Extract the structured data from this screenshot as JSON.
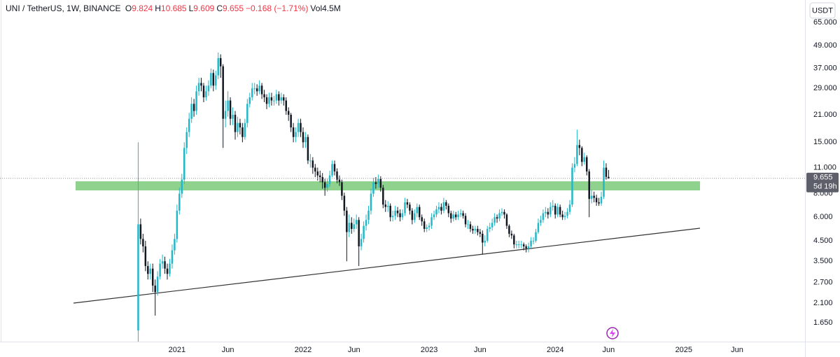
{
  "header": {
    "symbol": "UNI / TetherUS, 1W, BINANCE",
    "fields": [
      {
        "key": "O",
        "value": "9.824"
      },
      {
        "key": "H",
        "value": "10.685"
      },
      {
        "key": "L",
        "value": "9.609"
      },
      {
        "key": "C",
        "value": "9.655"
      }
    ],
    "change": "−0.168 (−1.71%)",
    "volume_key": "Vol",
    "volume": "4.5M"
  },
  "chart_data": {
    "type": "candlestick",
    "currency": "USDT",
    "log_scale": true,
    "grid": false,
    "up_color": "#22b8c8",
    "down_color": "#131722",
    "last_price": 9.655,
    "countdown": "5d 19h",
    "xlim": [
      -57,
      275
    ],
    "xticks": [
      {
        "value": 16,
        "label": "2021"
      },
      {
        "value": 37,
        "label": "Jun"
      },
      {
        "value": 68,
        "label": "2022"
      },
      {
        "value": 89,
        "label": "Jun"
      },
      {
        "value": 120,
        "label": "2023"
      },
      {
        "value": 141,
        "label": "Jun"
      },
      {
        "value": 172,
        "label": "2024"
      },
      {
        "value": 194,
        "label": "Jun"
      },
      {
        "value": 225,
        "label": "2025"
      },
      {
        "value": 247,
        "label": "Jun"
      }
    ],
    "ylim": [
      1.31,
      85.5
    ],
    "yticks": [
      {
        "value": 65,
        "label": "65.000"
      },
      {
        "value": 49,
        "label": "49.000"
      },
      {
        "value": 37,
        "label": "37.000"
      },
      {
        "value": 29,
        "label": "29.000"
      },
      {
        "value": 21,
        "label": "21.000"
      },
      {
        "value": 15,
        "label": "15.000"
      },
      {
        "value": 11,
        "label": "11.000"
      },
      {
        "value": 8,
        "label": "8.000"
      },
      {
        "value": 6,
        "label": "6.000"
      },
      {
        "value": 4.5,
        "label": "4.500"
      },
      {
        "value": 3.5,
        "label": "3.500"
      },
      {
        "value": 2.7,
        "label": "2.700"
      },
      {
        "value": 2.1,
        "label": "2.100"
      },
      {
        "value": 1.65,
        "label": "1.650"
      }
    ],
    "open": [
      1.5,
      5.5,
      4.6,
      4.2,
      3.3,
      3.0,
      3.2,
      2.6,
      2.4,
      2.9,
      3.4,
      3.5,
      3.2,
      3.0,
      3.4,
      4.0,
      4.6,
      6.5,
      8.0,
      9.5,
      14,
      17,
      20,
      24,
      22,
      28,
      31,
      30,
      26,
      28,
      30,
      35,
      30,
      34,
      42,
      38,
      20,
      22,
      25,
      20,
      21,
      17,
      19,
      18,
      16,
      19,
      24,
      26,
      29,
      29,
      28,
      30,
      27,
      26,
      24,
      26,
      25,
      25,
      27,
      25,
      26,
      25,
      22,
      21,
      18,
      16,
      17,
      19,
      17,
      15,
      16,
      12,
      12,
      11,
      10.5,
      10,
      9.8,
      9.2,
      8.6,
      9,
      10,
      11.5,
      10.5,
      9.5,
      9.2,
      7.8,
      6.5,
      5.0,
      5.6,
      5.2,
      5.5,
      5.8,
      4.2,
      4.6,
      5.4,
      5.8,
      6.5,
      8.0,
      9.2,
      9.0,
      9.6,
      8.6,
      7.0,
      6.8,
      6.9,
      6.0,
      6.1,
      6.5,
      6.3,
      6.0,
      6.3,
      7.2,
      7.0,
      6.5,
      5.8,
      6.3,
      6.8,
      6.0,
      5.7,
      5.2,
      5.3,
      5.4,
      6.0,
      6.2,
      6.6,
      6.8,
      6.5,
      7.2,
      6.9,
      6.3,
      5.9,
      6.2,
      6.0,
      6.2,
      6.3,
      6.1,
      5.5,
      5.5,
      5.2,
      5.1,
      5.2,
      5.0,
      4.9,
      4.4,
      4.5,
      5.2,
      5.3,
      5.6,
      6.0,
      5.9,
      6.3,
      6.4,
      6.2,
      5.4,
      4.9,
      4.8,
      4.3,
      4.3,
      4.3,
      4.3,
      4.2,
      4.1,
      4.2,
      4.5,
      4.5,
      5.0,
      5.6,
      5.8,
      6.3,
      6.4,
      6.2,
      6.8,
      6.9,
      6.2,
      6.8,
      6.2,
      6.0,
      6.1,
      6.4,
      7.0,
      11.0,
      11.5,
      14.5,
      14.0,
      11.8,
      12.5,
      10.5,
      7.5,
      7.8,
      7.6,
      7.2,
      7.1,
      7.7,
      11.0,
      9.824
    ],
    "high": [
      15,
      5.9,
      4.9,
      4.5,
      3.5,
      3.4,
      3.4,
      2.8,
      3.1,
      3.6,
      3.8,
      3.7,
      3.4,
      3.6,
      4.3,
      4.9,
      7.0,
      8.6,
      10.2,
      15,
      18,
      21.5,
      26,
      25.5,
      30,
      33,
      33,
      31,
      30,
      32,
      37,
      36.5,
      36,
      45,
      44,
      39,
      25,
      28,
      26,
      23,
      22,
      20.5,
      20,
      19,
      20,
      25.5,
      27.5,
      31,
      31,
      30.5,
      32,
      31,
      28.5,
      27,
      27.5,
      27.5,
      26.5,
      28.5,
      28,
      27.5,
      27,
      26,
      23,
      21.5,
      19,
      18,
      20,
      20,
      18,
      17,
      16.5,
      13,
      12.5,
      11.5,
      11,
      10.6,
      10.3,
      9.6,
      9.6,
      10.6,
      12,
      12,
      10.9,
      10,
      9.5,
      8.1,
      6.8,
      6.2,
      6.0,
      5.9,
      6.2,
      6.0,
      4.9,
      5.7,
      6.2,
      6.9,
      8.5,
      9.7,
      9.8,
      10.1,
      9.9,
      8.9,
      7.4,
      7.3,
      7.1,
      6.5,
      6.9,
      6.8,
      6.6,
      6.6,
      7.6,
      7.5,
      7.2,
      6.7,
      6.6,
      7.1,
      7.0,
      6.2,
      5.9,
      5.5,
      5.6,
      6.3,
      6.5,
      6.9,
      7.2,
      7.1,
      7.6,
      7.4,
      7.1,
      6.5,
      6.5,
      6.4,
      6.5,
      6.6,
      6.5,
      6.3,
      5.8,
      5.7,
      5.4,
      5.4,
      5.4,
      5.2,
      5.1,
      4.8,
      5.4,
      5.6,
      5.9,
      6.3,
      6.2,
      6.6,
      6.7,
      6.6,
      6.3,
      5.5,
      5.1,
      4.9,
      4.5,
      4.5,
      4.5,
      4.4,
      4.3,
      4.4,
      4.7,
      4.7,
      5.2,
      5.9,
      6.1,
      6.6,
      6.8,
      6.7,
      7.2,
      7.4,
      7.1,
      7.1,
      7.0,
      6.5,
      6.4,
      6.7,
      7.4,
      11.6,
      12.5,
      17.5,
      15.5,
      14.3,
      13.2,
      12.8,
      10.8,
      8.4,
      8.2,
      7.9,
      7.6,
      8.2,
      12.0,
      11.6,
      10.685
    ],
    "low": [
      1.31,
      4.3,
      3.9,
      3.1,
      2.8,
      2.8,
      2.4,
      1.8,
      2.3,
      2.8,
      3.2,
      3.0,
      2.8,
      2.9,
      3.2,
      3.8,
      4.4,
      6.2,
      7.6,
      9.0,
      13,
      16,
      19,
      20.5,
      21,
      26.5,
      28,
      24.5,
      25,
      26.5,
      29,
      28,
      28.5,
      32.5,
      33,
      14,
      18,
      20.5,
      18.5,
      18.5,
      15.5,
      16,
      16.5,
      15,
      15.5,
      18,
      23,
      25,
      27,
      26.5,
      27,
      25.5,
      24.5,
      22.5,
      23,
      23.5,
      23.5,
      24,
      23.5,
      24,
      23.5,
      21,
      19.5,
      17,
      15,
      15,
      16,
      16,
      14,
      14,
      11.5,
      11,
      10.2,
      9.8,
      9.4,
      9.2,
      8.5,
      7.8,
      8.2,
      8.7,
      9.8,
      10,
      9.1,
      8.8,
      7.4,
      6.1,
      3.5,
      4.7,
      4.9,
      5.0,
      5.2,
      3.3,
      4.0,
      4.4,
      5.1,
      5.5,
      6.2,
      7.7,
      8.5,
      8.6,
      8.2,
      6.7,
      6.4,
      6.4,
      5.7,
      5.7,
      5.8,
      6.0,
      5.7,
      5.8,
      6.1,
      6.7,
      6.2,
      5.5,
      5.6,
      6.0,
      5.8,
      5.4,
      5.0,
      5.0,
      5.1,
      5.2,
      5.8,
      6.0,
      6.3,
      6.2,
      6.3,
      6.6,
      6.0,
      5.6,
      5.7,
      5.8,
      5.8,
      6.0,
      5.9,
      5.3,
      5.2,
      5.0,
      4.9,
      4.9,
      4.8,
      4.7,
      3.8,
      4.2,
      4.4,
      5.0,
      5.1,
      5.4,
      5.6,
      5.7,
      6.1,
      5.9,
      5.2,
      4.7,
      4.6,
      4.1,
      4.1,
      4.1,
      4.1,
      4.0,
      3.9,
      3.9,
      4.1,
      4.3,
      4.4,
      4.9,
      5.4,
      5.6,
      6.0,
      5.9,
      6.0,
      6.5,
      5.9,
      6.0,
      6.0,
      5.8,
      5.8,
      5.9,
      6.2,
      6.8,
      10.4,
      11.2,
      12.8,
      11.2,
      11.4,
      10.0,
      6.0,
      7.1,
      7.2,
      6.9,
      6.9,
      6.9,
      7.5,
      9.5,
      9.609
    ],
    "close": [
      5.5,
      4.6,
      4.2,
      3.3,
      3.0,
      3.2,
      2.6,
      2.4,
      2.9,
      3.4,
      3.5,
      3.2,
      3.0,
      3.4,
      4.0,
      4.6,
      6.5,
      8.0,
      9.5,
      14,
      17,
      20,
      24,
      22,
      28,
      31,
      30,
      26,
      28,
      30,
      35,
      30,
      34,
      42,
      38,
      20,
      22,
      25,
      20,
      21,
      17,
      19,
      18,
      16,
      19,
      24,
      26,
      29,
      29,
      28,
      30,
      27,
      26,
      24,
      26,
      25,
      25,
      27,
      25,
      26,
      25,
      22,
      21,
      18,
      16,
      17,
      19,
      17,
      15,
      16,
      12,
      12,
      11,
      10.5,
      10,
      9.8,
      9.2,
      8.6,
      9,
      10,
      11.5,
      10.5,
      9.5,
      9.2,
      7.8,
      6.5,
      5.0,
      5.6,
      5.2,
      5.5,
      5.8,
      4.2,
      4.6,
      5.4,
      5.8,
      6.5,
      8.0,
      9.2,
      9.0,
      9.6,
      8.6,
      7.0,
      6.8,
      6.9,
      6.0,
      6.1,
      6.5,
      6.3,
      6.0,
      6.3,
      7.2,
      7.0,
      6.5,
      5.8,
      6.3,
      6.8,
      6.0,
      5.7,
      5.2,
      5.3,
      5.4,
      6.0,
      6.2,
      6.6,
      6.8,
      6.5,
      7.2,
      6.9,
      6.3,
      5.9,
      6.2,
      6.0,
      6.2,
      6.3,
      6.1,
      5.5,
      5.5,
      5.2,
      5.1,
      5.2,
      5.0,
      4.9,
      4.4,
      4.5,
      5.2,
      5.3,
      5.6,
      6.0,
      5.9,
      6.3,
      6.4,
      6.2,
      5.4,
      4.9,
      4.8,
      4.3,
      4.3,
      4.3,
      4.3,
      4.2,
      4.1,
      4.2,
      4.5,
      4.5,
      5.0,
      5.6,
      5.8,
      6.3,
      6.4,
      6.2,
      6.8,
      6.9,
      6.2,
      6.8,
      6.2,
      6.0,
      6.1,
      6.4,
      7.0,
      11.0,
      11.5,
      14.5,
      14.0,
      11.8,
      12.5,
      10.5,
      7.5,
      7.8,
      7.6,
      7.2,
      7.1,
      7.7,
      11.0,
      9.824,
      9.655
    ]
  }
}
